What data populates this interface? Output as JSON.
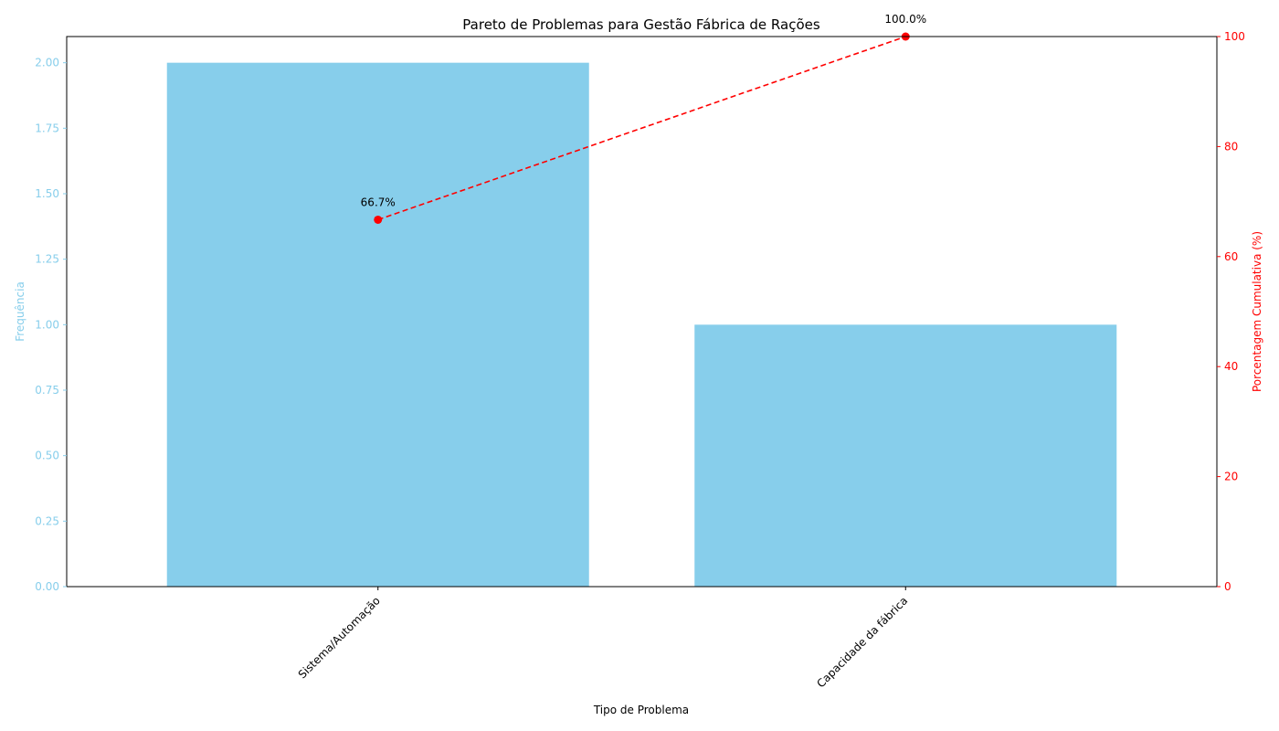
{
  "chart_data": {
    "type": "bar",
    "title": "Pareto de Problemas para Gestão Fábrica de Rações",
    "xlabel": "Tipo de Problema",
    "ylabel": "Frequência",
    "y2label": "Porcentagem Cumulativa (%)",
    "categories": [
      "Sistema/Automação",
      "Capacidade da fábrica"
    ],
    "series": [
      {
        "values": [
          2,
          1
        ],
        "axis": "left",
        "kind": "bar",
        "color": "#87ceeb"
      },
      {
        "values": [
          66.7,
          100.0
        ],
        "axis": "right",
        "kind": "line",
        "color": "#ff0000",
        "line_style": "dashed",
        "marker": "circle"
      }
    ],
    "cumulative_labels": [
      "66.7%",
      "100.0%"
    ],
    "ylim": [
      0,
      2.1
    ],
    "yticks": [
      "0.00",
      "0.25",
      "0.50",
      "0.75",
      "1.00",
      "1.25",
      "1.50",
      "1.75",
      "2.00"
    ],
    "y2lim": [
      0,
      100
    ],
    "y2ticks": [
      "0",
      "20",
      "40",
      "60",
      "80",
      "100"
    ],
    "grid": false,
    "legend": "none",
    "colors": {
      "bar": "#87ceeb",
      "left_axis": "#87ceeb",
      "right_axis": "#ff0000",
      "line": "#ff0000"
    }
  }
}
